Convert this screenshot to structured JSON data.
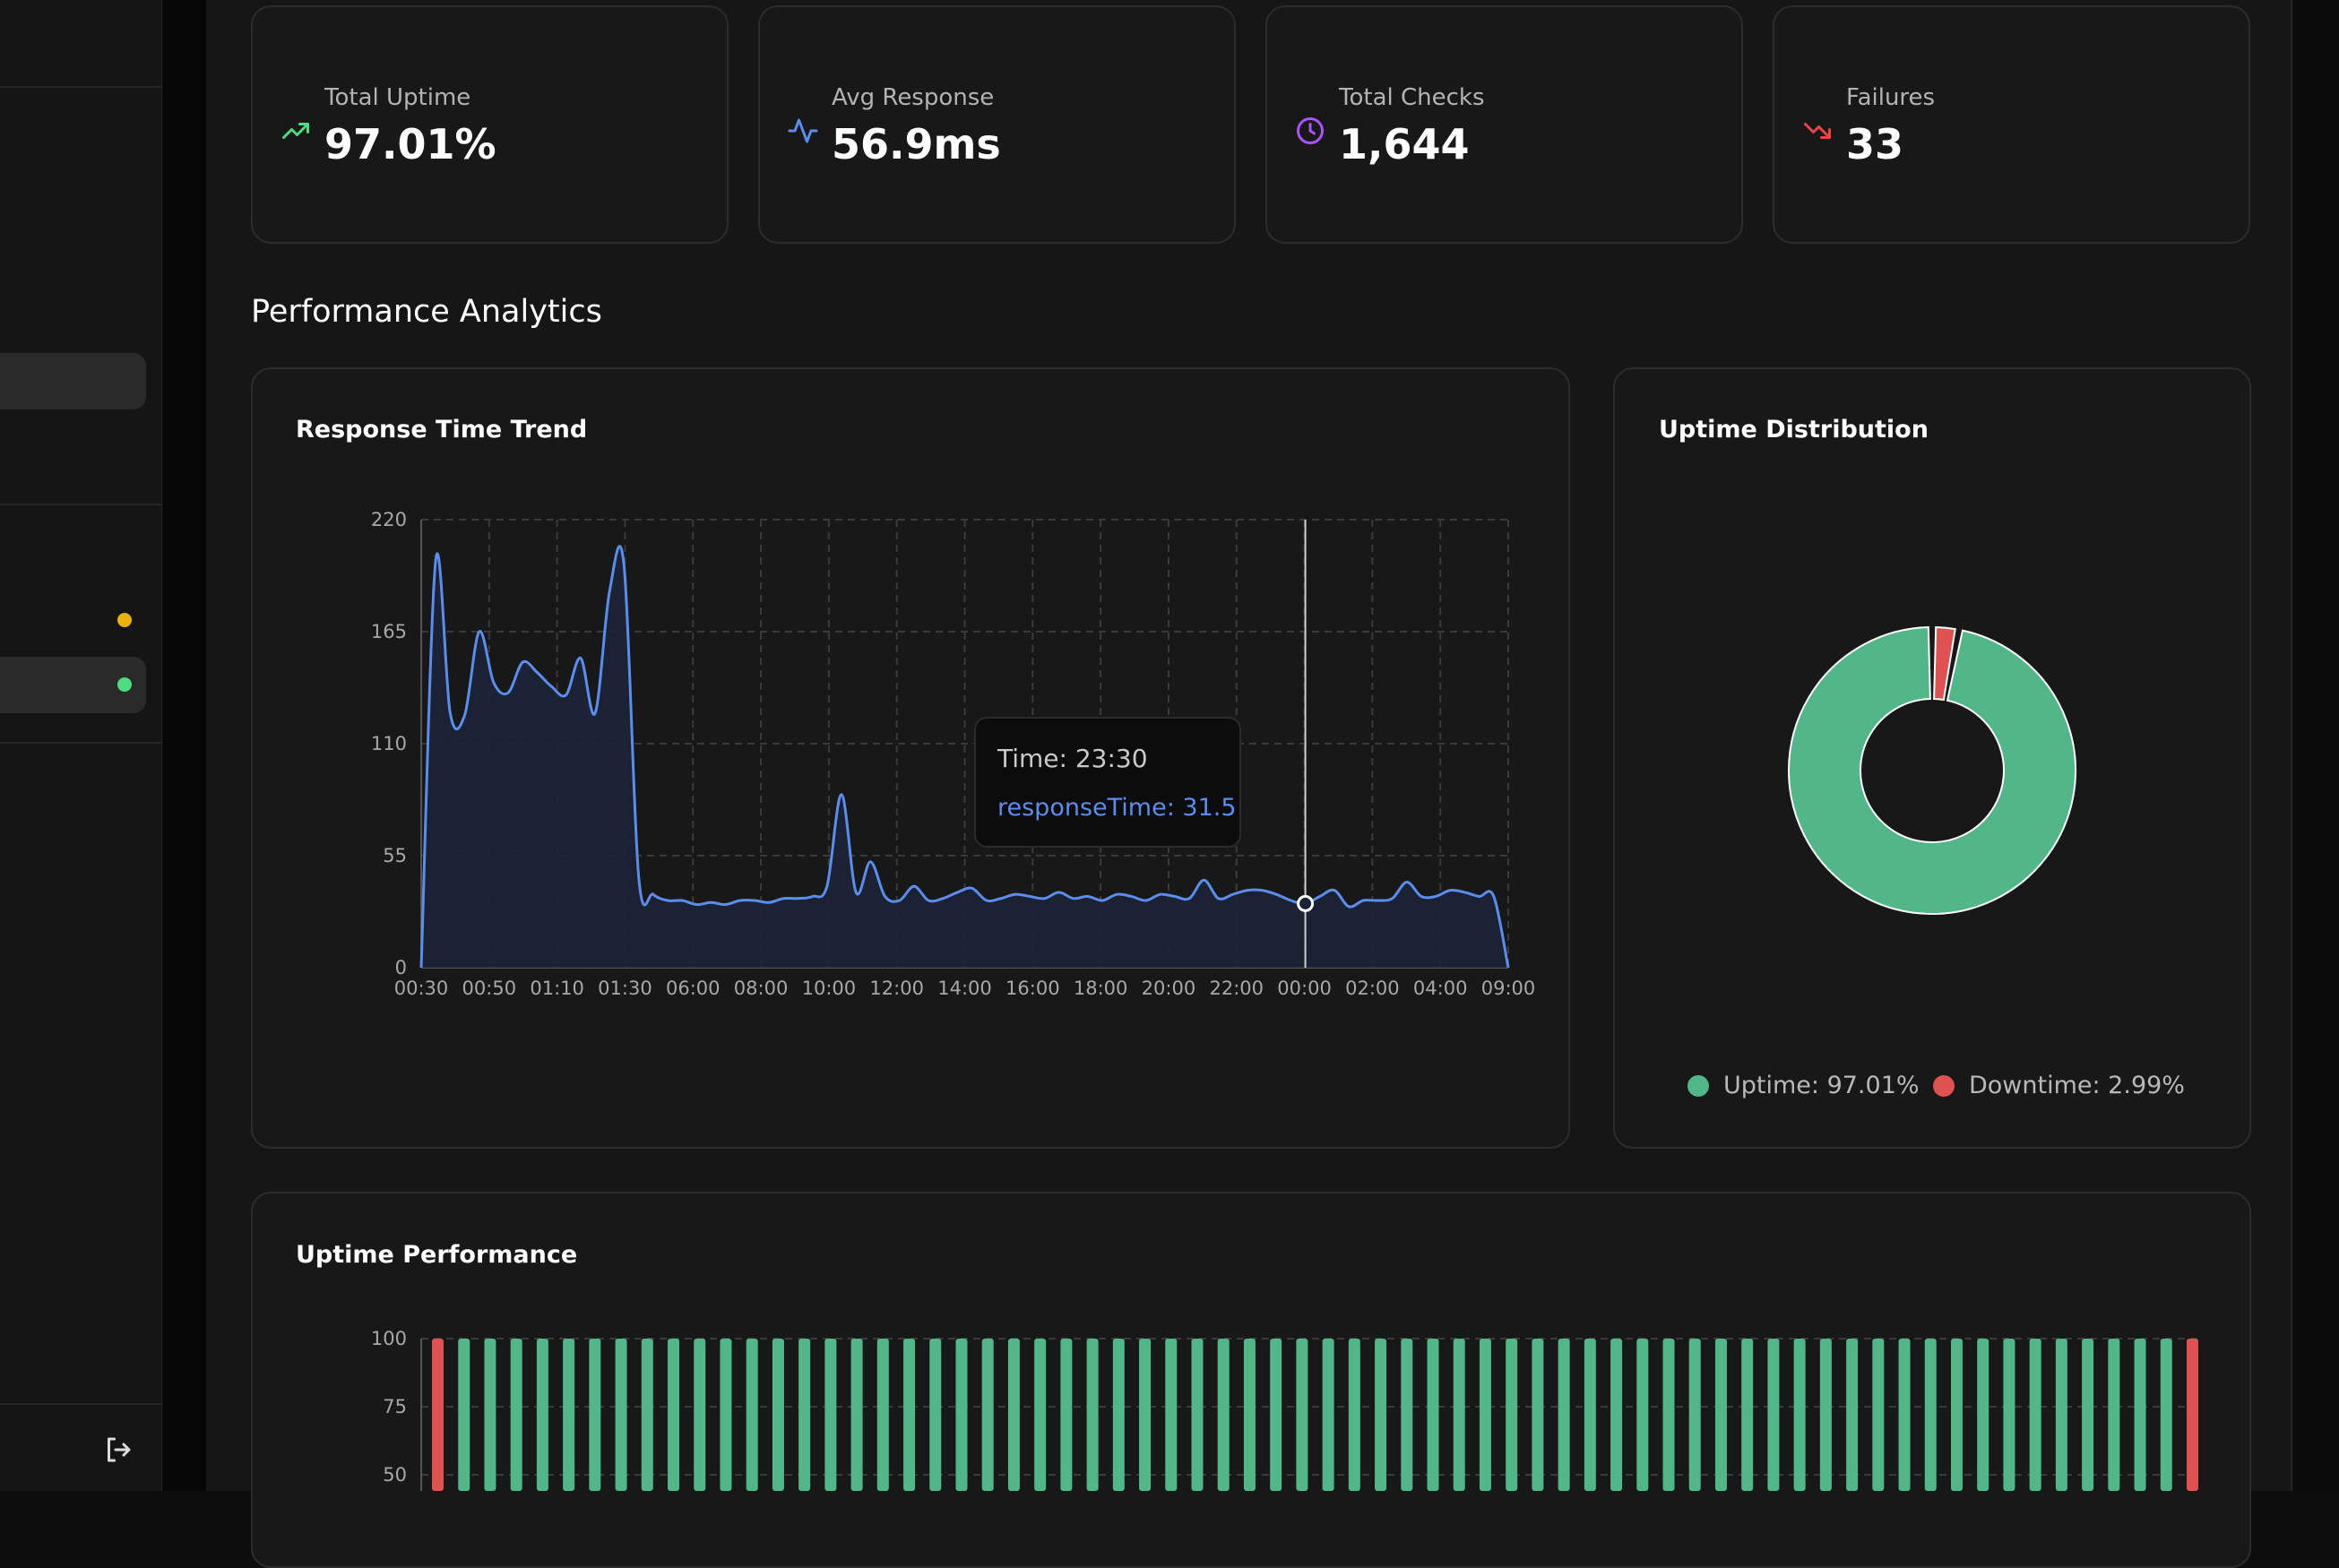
{
  "stats": [
    {
      "label": "Total Uptime",
      "value": "97.01%",
      "icon": "trending-up-icon",
      "color": "#4ade80"
    },
    {
      "label": "Avg Response",
      "value": "56.9ms",
      "icon": "activity-icon",
      "color": "#5b8def"
    },
    {
      "label": "Total Checks",
      "value": "1,644",
      "icon": "clock-icon",
      "color": "#a855f7"
    },
    {
      "label": "Failures",
      "value": "33",
      "icon": "trending-down-icon",
      "color": "#ef4444"
    }
  ],
  "section_title": "Performance Analytics",
  "response_card": {
    "title": "Response Time Trend",
    "tooltip": {
      "time": "Time: 23:30",
      "value": "responseTime: 31.5"
    }
  },
  "distribution_card": {
    "title": "Uptime Distribution",
    "legend": [
      {
        "label": "Uptime: 97.01%",
        "color": "#52b788"
      },
      {
        "label": "Downtime: 2.99%",
        "color": "#e05252"
      }
    ]
  },
  "uptime_card": {
    "title": "Uptime Performance"
  },
  "colors": {
    "accent": "#5b8def",
    "up": "#52b788",
    "down": "#e05252"
  },
  "chart_data": [
    {
      "type": "area",
      "title": "Response Time Trend",
      "xlabel": "",
      "ylabel": "",
      "ylim": [
        0,
        220
      ],
      "yticks": [
        0,
        55,
        110,
        165,
        220
      ],
      "xticks": [
        "00:30",
        "00:50",
        "01:10",
        "01:30",
        "06:00",
        "08:00",
        "10:00",
        "12:00",
        "14:00",
        "16:00",
        "18:00",
        "20:00",
        "22:00",
        "00:00",
        "02:00",
        "04:00",
        "09:00"
      ],
      "grid": true,
      "series": [
        {
          "name": "responseTime",
          "values": [
            0,
            200,
            125,
            124,
            165,
            140,
            135,
            150,
            145,
            138,
            134,
            152,
            125,
            185,
            197,
            45,
            36,
            33,
            33,
            31,
            32,
            31,
            33,
            33,
            32,
            34,
            34,
            35,
            40,
            85,
            37,
            52,
            35,
            33,
            40,
            33,
            34,
            37,
            39,
            33,
            34,
            36,
            35,
            34,
            37,
            34,
            35,
            33,
            36,
            35,
            33,
            36,
            35,
            34,
            43,
            34,
            36,
            38,
            38,
            36,
            33,
            31.5,
            35,
            38,
            30,
            33,
            33,
            34,
            42,
            35,
            35,
            38,
            37,
            35,
            35,
            0
          ]
        }
      ]
    },
    {
      "type": "pie",
      "title": "Uptime Distribution",
      "categories": [
        "Uptime",
        "Downtime"
      ],
      "values": [
        97.01,
        2.99
      ]
    },
    {
      "type": "bar",
      "title": "Uptime Performance",
      "ylim": [
        50,
        100
      ],
      "yticks": [
        50,
        75,
        100
      ],
      "grid": true,
      "series": [
        {
          "name": "uptime",
          "values": [
            0,
            1,
            1,
            1,
            1,
            1,
            1,
            1,
            1,
            1,
            1,
            1,
            1,
            1,
            1,
            1,
            1,
            1,
            1,
            1,
            1,
            1,
            1,
            1,
            1,
            1,
            1,
            1,
            1,
            1,
            1,
            1,
            1,
            1,
            1,
            1,
            1,
            1,
            1,
            1,
            1,
            1,
            1,
            1,
            1,
            1,
            1,
            1,
            1,
            1,
            1,
            1,
            1,
            1,
            1,
            1,
            1,
            1,
            1,
            1,
            1,
            1,
            1,
            1,
            1,
            1,
            1,
            0
          ]
        }
      ]
    }
  ]
}
